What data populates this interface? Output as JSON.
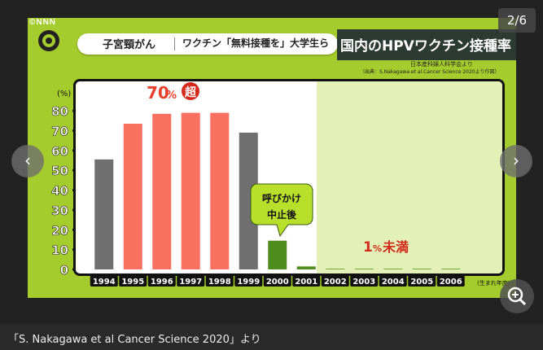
{
  "viewer": {
    "counter": "2/6",
    "prev_icon": "chevron-left-icon",
    "next_icon": "chevron-right-icon",
    "zoom_icon": "zoom-in-icon",
    "caption": "「S. Nakagawa et al Cancer Science 2020」より"
  },
  "slide": {
    "logo": "©NNN",
    "tag_topic": "子宮頸がん",
    "tag_headline": "ワクチン「無料接種を」大学生ら",
    "title": "国内のHPVワクチン接種率",
    "source_line1": "日本産科婦人科学会より",
    "source_line2": "（出典：S.Nakagawa.et al.Cancer Science 2020より作図）"
  },
  "chart_data": {
    "type": "bar",
    "y_unit_label": "(%)",
    "xlabel_suffix": "(生まれ年度)",
    "ylim": [
      0,
      85
    ],
    "yticks": [
      0,
      10,
      20,
      30,
      40,
      50,
      60,
      70,
      80
    ],
    "categories": [
      "1994",
      "1995",
      "1996",
      "1997",
      "1998",
      "1999",
      "2000",
      "2001",
      "2002",
      "2003",
      "2004",
      "2005",
      "2006"
    ],
    "values": [
      55.5,
      73.5,
      78.5,
      79,
      79,
      69,
      14.5,
      1.5,
      0.3,
      0.3,
      0.3,
      0.3,
      0.3
    ],
    "bar_colors": [
      "#6f6f6f",
      "#fa7060",
      "#fa7060",
      "#fa7060",
      "#fa7060",
      "#6f6f6f",
      "#4f8c1e",
      "#4f8c1e",
      "#4f8c1e",
      "#4f8c1e",
      "#4f8c1e",
      "#4f8c1e",
      "#4f8c1e"
    ],
    "annotations": {
      "peak_value": "70",
      "peak_unit": "%",
      "peak_badge": "超",
      "halt_line1": "呼びかけ",
      "halt_line2": "中止後",
      "low_value": "1",
      "low_unit": "%",
      "low_suffix": "未満"
    }
  }
}
